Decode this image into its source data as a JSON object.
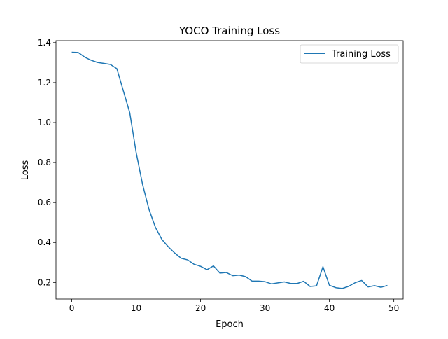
{
  "chart_data": {
    "type": "line",
    "title": "YOCO Training Loss",
    "xlabel": "Epoch",
    "ylabel": "Loss",
    "xlim": [
      -2.45,
      51.45
    ],
    "ylim": [
      0.117,
      1.41
    ],
    "xticks": [
      0,
      10,
      20,
      30,
      40,
      50
    ],
    "yticks": [
      0.2,
      0.4,
      0.6,
      0.8,
      1.0,
      1.2,
      1.4
    ],
    "xtick_labels": [
      "0",
      "10",
      "20",
      "30",
      "40",
      "50"
    ],
    "ytick_labels": [
      "0.2",
      "0.4",
      "0.6",
      "0.8",
      "1.0",
      "1.2",
      "1.4"
    ],
    "grid": false,
    "legend_position": "upper right",
    "series": [
      {
        "name": "Training Loss",
        "color": "#1f77b4",
        "x": [
          0,
          1,
          2,
          3,
          4,
          5,
          6,
          7,
          8,
          9,
          10,
          11,
          12,
          13,
          14,
          15,
          16,
          17,
          18,
          19,
          20,
          21,
          22,
          23,
          24,
          25,
          26,
          27,
          28,
          29,
          30,
          31,
          32,
          33,
          34,
          35,
          36,
          37,
          38,
          39,
          40,
          41,
          42,
          43,
          44,
          45,
          46,
          47,
          48,
          49
        ],
        "values": [
          1.352,
          1.351,
          1.328,
          1.312,
          1.301,
          1.296,
          1.291,
          1.27,
          1.16,
          1.05,
          0.85,
          0.69,
          0.565,
          0.475,
          0.415,
          0.378,
          0.347,
          0.321,
          0.313,
          0.291,
          0.281,
          0.264,
          0.283,
          0.247,
          0.25,
          0.234,
          0.237,
          0.229,
          0.207,
          0.207,
          0.204,
          0.193,
          0.198,
          0.203,
          0.195,
          0.195,
          0.206,
          0.18,
          0.183,
          0.279,
          0.186,
          0.174,
          0.17,
          0.181,
          0.199,
          0.21,
          0.178,
          0.184,
          0.176,
          0.185
        ]
      }
    ]
  }
}
